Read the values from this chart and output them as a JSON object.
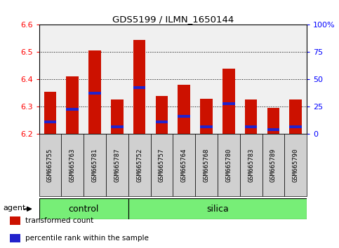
{
  "title": "GDS5199 / ILMN_1650144",
  "samples": [
    "GSM665755",
    "GSM665763",
    "GSM665781",
    "GSM665787",
    "GSM665752",
    "GSM665757",
    "GSM665764",
    "GSM665768",
    "GSM665780",
    "GSM665783",
    "GSM665789",
    "GSM665790"
  ],
  "groups": [
    "control",
    "control",
    "control",
    "control",
    "silica",
    "silica",
    "silica",
    "silica",
    "silica",
    "silica",
    "silica",
    "silica"
  ],
  "transformed_counts": [
    6.355,
    6.41,
    6.505,
    6.325,
    6.545,
    6.34,
    6.38,
    6.33,
    6.44,
    6.325,
    6.295,
    6.325
  ],
  "percentile_ranks": [
    6.245,
    6.29,
    6.35,
    6.225,
    6.37,
    6.245,
    6.265,
    6.225,
    6.31,
    6.225,
    6.215,
    6.225
  ],
  "ylim": [
    6.2,
    6.6
  ],
  "yticks_left": [
    6.2,
    6.3,
    6.4,
    6.5,
    6.6
  ],
  "yticks_right_labels": [
    "0",
    "25",
    "50",
    "75",
    "100%"
  ],
  "bar_color": "#cc1100",
  "percentile_color": "#2222cc",
  "bar_width": 0.55,
  "group_color": "#77ee77",
  "legend_items": [
    "transformed count",
    "percentile rank within the sample"
  ],
  "legend_colors": [
    "#cc1100",
    "#2222cc"
  ],
  "agent_label": "agent",
  "plot_bg": "#f0f0f0",
  "label_bg": "#d0d0d0",
  "n_control": 4
}
